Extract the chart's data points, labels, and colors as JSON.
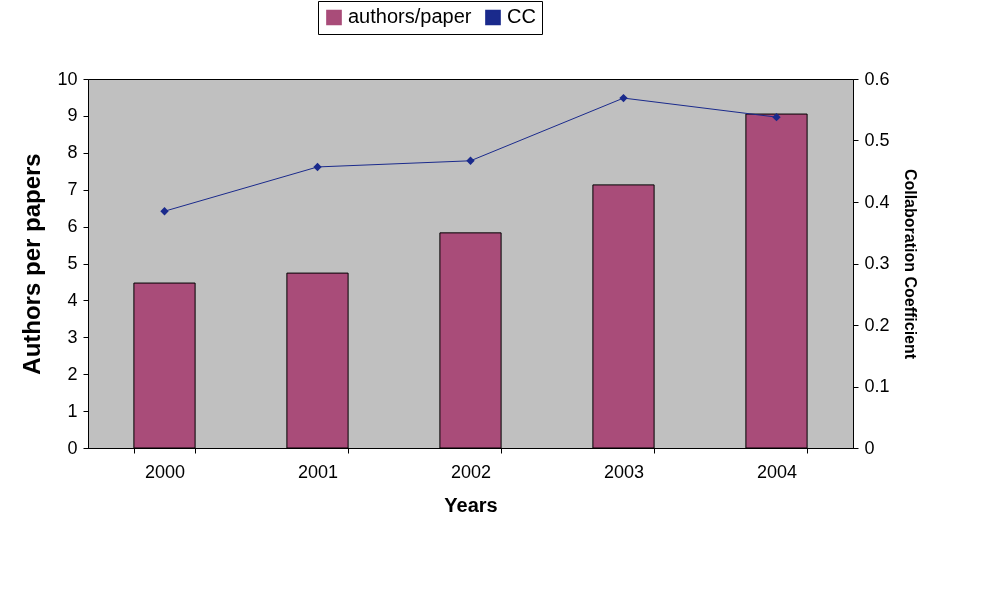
{
  "chart_data": {
    "type": "bar",
    "categories": [
      "2000",
      "2001",
      "2002",
      "2003",
      "2004"
    ],
    "series": [
      {
        "name": "authors/paper",
        "color": "#a94c79",
        "values": [
          4.47,
          4.74,
          5.83,
          7.13,
          9.05
        ]
      },
      {
        "name": "CC",
        "type": "line",
        "axis": "y2",
        "color": "#1a2a8c",
        "values": [
          0.385,
          0.457,
          0.467,
          0.569,
          0.538
        ]
      }
    ],
    "xlabel": "Years",
    "ylabel": "Authors per papers",
    "y2label": "Collaboration Coefficient",
    "ylim": [
      0,
      10
    ],
    "yticks": [
      0,
      1,
      2,
      3,
      4,
      5,
      6,
      7,
      8,
      9,
      10
    ],
    "y2lim": [
      0,
      0.6
    ],
    "y2ticks": [
      0,
      0.1,
      0.2,
      0.3,
      0.4,
      0.5,
      0.6
    ],
    "legend": "top",
    "grid": false,
    "marker": "diamond"
  }
}
